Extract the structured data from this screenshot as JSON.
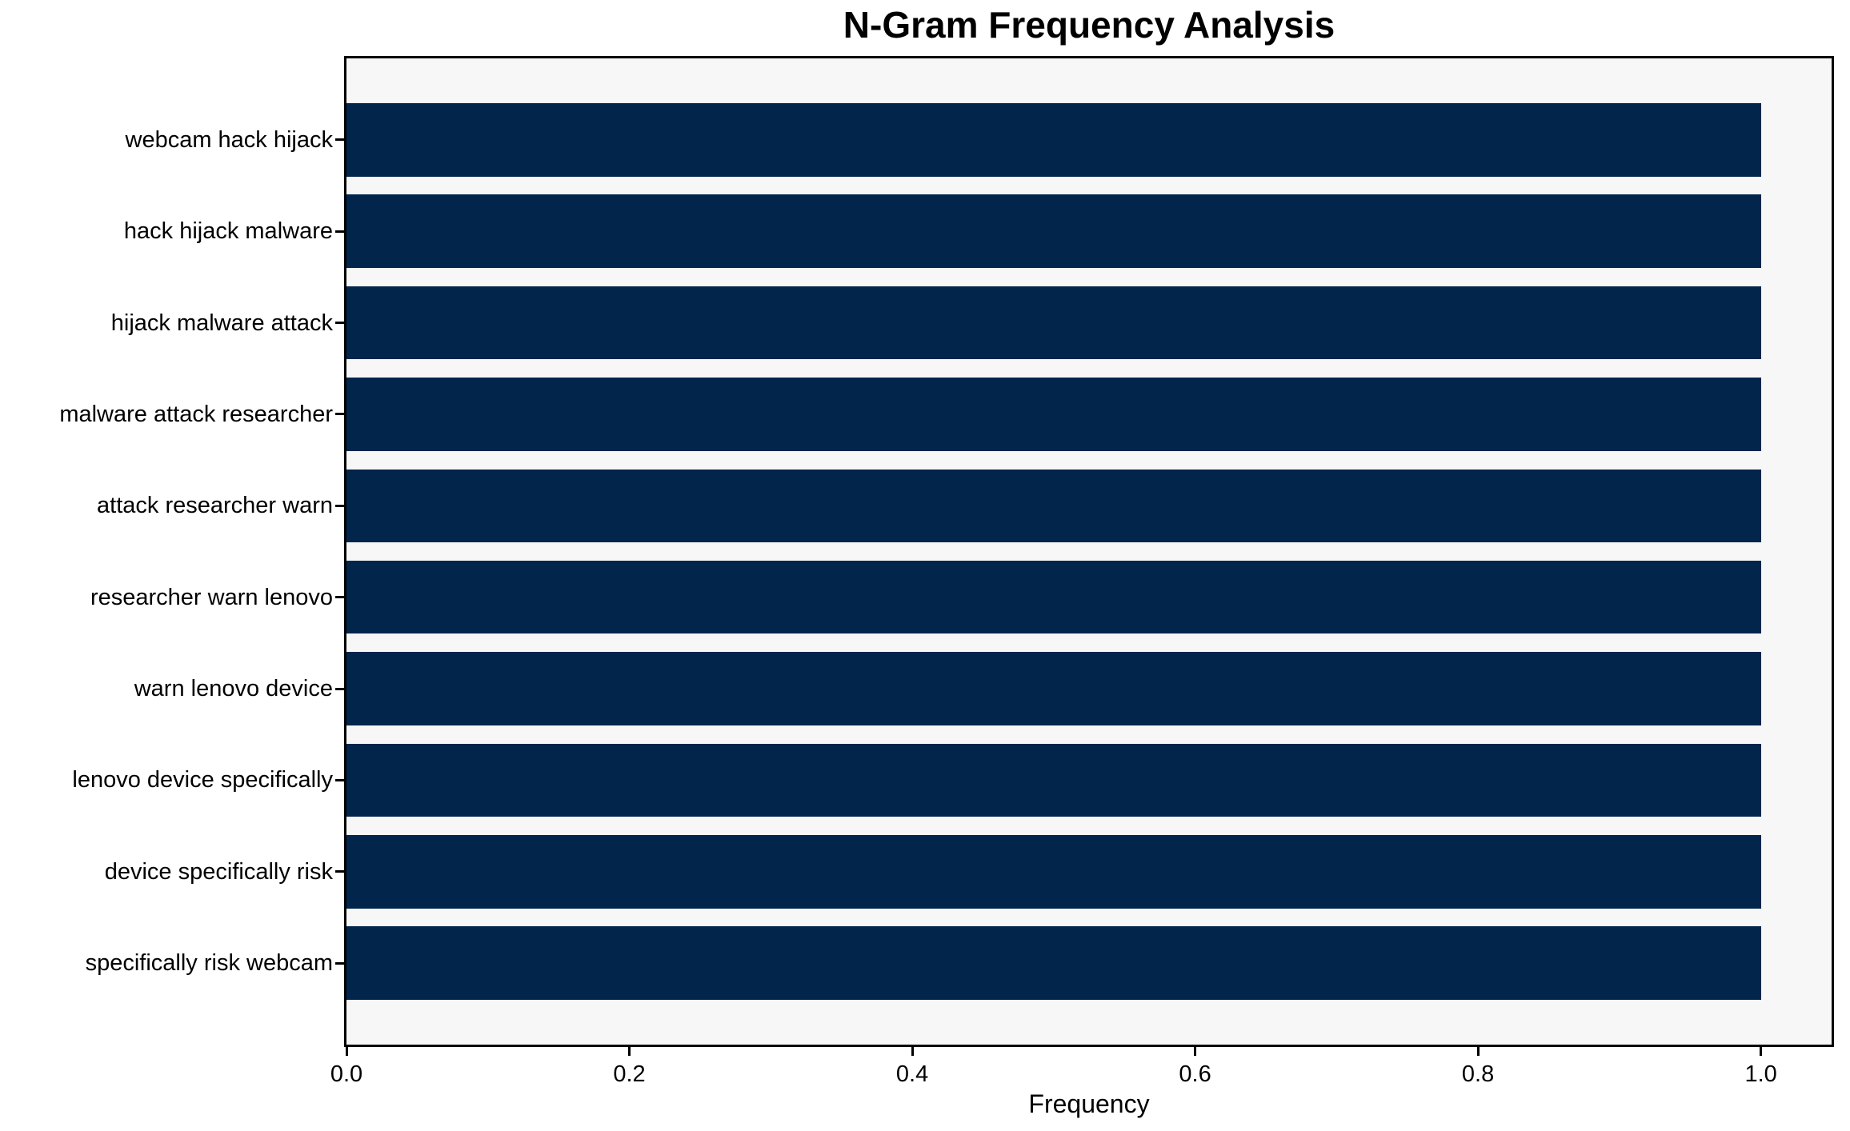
{
  "chart_data": {
    "type": "bar",
    "orientation": "horizontal",
    "title": "N-Gram Frequency Analysis",
    "xlabel": "Frequency",
    "ylabel": "",
    "categories": [
      "webcam hack hijack",
      "hack hijack malware",
      "hijack malware attack",
      "malware attack researcher",
      "attack researcher warn",
      "researcher warn lenovo",
      "warn lenovo device",
      "lenovo device specifically",
      "device specifically risk",
      "specifically risk webcam"
    ],
    "values": [
      1.0,
      1.0,
      1.0,
      1.0,
      1.0,
      1.0,
      1.0,
      1.0,
      1.0,
      1.0
    ],
    "xticks": [
      "0.0",
      "0.2",
      "0.4",
      "0.6",
      "0.8",
      "1.0"
    ],
    "xtick_values": [
      0.0,
      0.2,
      0.4,
      0.6,
      0.8,
      1.0
    ],
    "xlim": [
      0,
      1.05
    ],
    "bar_color": "#02254c",
    "plot_background": "#f7f7f7",
    "grid": false,
    "legend": null
  }
}
